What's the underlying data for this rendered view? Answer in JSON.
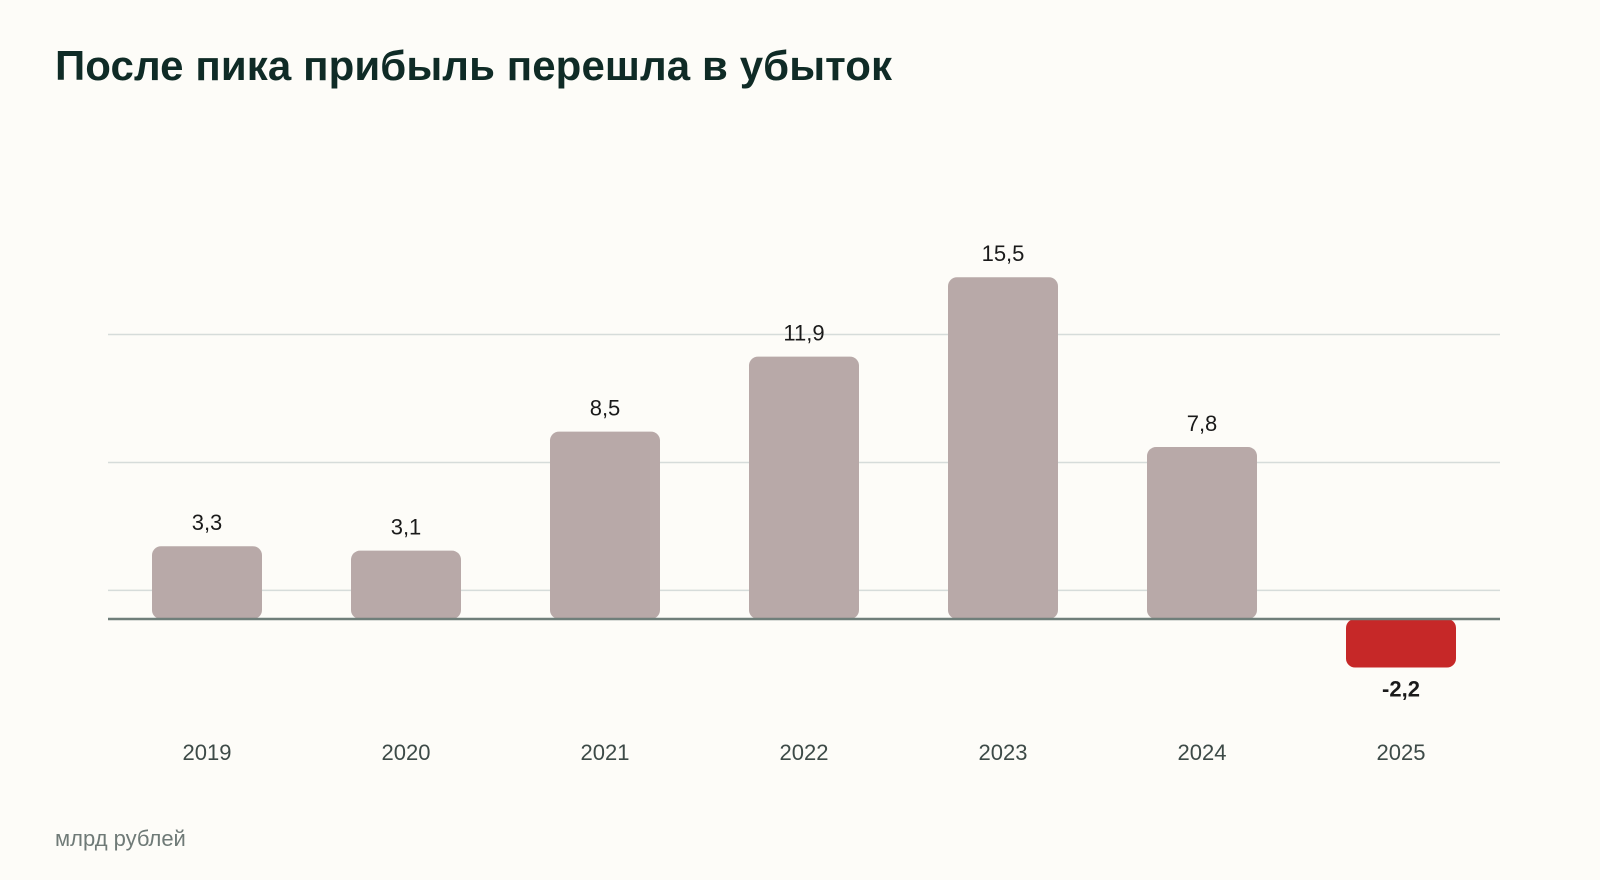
{
  "title": "После пика прибыль перешла в убыток",
  "unit_note": "млрд рублей",
  "colors": {
    "bar_positive": "#b8a9a8",
    "bar_negative": "#c62828",
    "gridline": "#d6dcda",
    "baseline": "#6f7f7a",
    "title": "#0f2b26"
  },
  "chart_data": {
    "type": "bar",
    "categories": [
      "2019",
      "2020",
      "2021",
      "2022",
      "2023",
      "2024",
      "2025"
    ],
    "values": [
      3.3,
      3.1,
      8.5,
      11.9,
      15.5,
      7.8,
      -2.2
    ],
    "value_labels": [
      "3,3",
      "3,1",
      "8,5",
      "11,9",
      "15,5",
      "7,8",
      "-2,2"
    ],
    "ylim": [
      -2.2,
      15.5
    ],
    "gridlines": [
      1.3,
      7.1,
      12.9
    ],
    "grid": true,
    "legend": "none"
  }
}
